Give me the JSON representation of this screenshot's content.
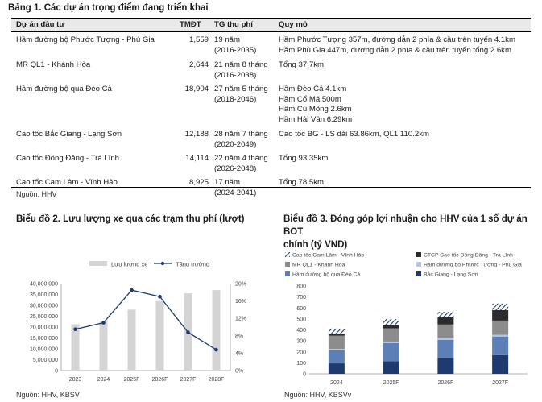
{
  "table": {
    "title": "Bảng 1. Các dự án trọng điểm đang triển khai",
    "headers": [
      "Dự án đầu tư",
      "TMĐT",
      "TG thu phí",
      "Quy mô"
    ],
    "rows": [
      {
        "project": "Hầm đường bộ Phước Tượng - Phú Gia",
        "tmdt": "1,559",
        "period": [
          "19 năm",
          "(2016-2035)"
        ],
        "scale": [
          "Hầm Phước Tượng 357m, đường dẫn 2 phía & cầu trên tuyến 4.1km",
          "Hầm Phú Gia 447m, đường dẫn 2 phía & cầu trên tuyến tổng 2.6km"
        ]
      },
      {
        "project": "MR QL1 - Khánh Hòa",
        "tmdt": "2,644",
        "period": [
          "21 năm 8 tháng",
          "(2016-2038)"
        ],
        "scale": [
          "Tổng 37.7km"
        ]
      },
      {
        "project": "Hầm đường bộ qua Đèo Cả",
        "tmdt": "18,904",
        "period": [
          "27 năm 5 tháng",
          "(2018-2046)"
        ],
        "scale": [
          "Hầm Đèo Cả 4.1km",
          "Hầm Cổ Mã 500m",
          "Hầm Cù Mông 2.6km",
          "Hầm Hải Vân 6.29km"
        ]
      },
      {
        "project": "Cao tốc Bắc Giang - Lạng Sơn",
        "tmdt": "12,188",
        "period": [
          "28 năm 7 tháng",
          "(2020-2049)"
        ],
        "scale": [
          "Cao tốc BG - LS dài 63.86km, QL1 110.2km"
        ]
      },
      {
        "project": "Cao tốc Đồng Đăng - Trà Lĩnh",
        "tmdt": "14,114",
        "period": [
          "22 năm 4 tháng",
          "(2026-2048)"
        ],
        "scale": [
          "Tổng 93.35km"
        ]
      },
      {
        "project": "Cao tốc Cam Lâm - Vĩnh Hảo",
        "tmdt": "8,925",
        "period": [
          "17 năm",
          "(2024-2041)"
        ],
        "scale": [
          "Tổng 78.5km"
        ]
      }
    ],
    "source": "Nguồn: HHV"
  },
  "chart_data": [
    {
      "type": "bar+line",
      "title": "Biểu đồ 2. Lưu lượng xe qua các trạm thu phí (lượt)",
      "categories": [
        "2023",
        "2024",
        "2025F",
        "2026F",
        "2027F",
        "2028F"
      ],
      "series": [
        {
          "name": "Lưu lượng xe",
          "type": "bar",
          "axis": "left",
          "values": [
            21300000,
            22500000,
            28000000,
            32000000,
            35500000,
            37000000
          ]
        },
        {
          "name": "Tăng trưởng",
          "type": "line",
          "axis": "right",
          "values": [
            9.5,
            11.0,
            18.5,
            17.0,
            8.8,
            4.8
          ]
        }
      ],
      "y_left": {
        "min": 0,
        "max": 40000000,
        "ticks": [
          "0",
          "5,000,000",
          "10,000,000",
          "15,000,000",
          "20,000,000",
          "25,000,000",
          "30,000,000",
          "35,000,000",
          "40,000,000"
        ]
      },
      "y_right": {
        "min": 0,
        "max": 20,
        "ticks": [
          "0%",
          "4%",
          "8%",
          "12%",
          "16%",
          "20%"
        ]
      },
      "legend_position": "top",
      "source": "Nguồn: HHV, KBSV"
    },
    {
      "type": "stacked-bar",
      "title_lines": [
        "Biểu đồ 3. Đóng góp lợi nhuận cho HHV của 1 số dự án BOT",
        "chính (tỷ VND)"
      ],
      "categories": [
        "2024",
        "2025F",
        "2026F",
        "2027F"
      ],
      "y_axis": {
        "min": 0,
        "max": 800,
        "ticks": [
          "0",
          "100",
          "200",
          "300",
          "400",
          "500",
          "600",
          "700",
          "800"
        ]
      },
      "series": [
        {
          "name": "Bắc Giang - Lạng Sơn",
          "color": "#1f3a6e",
          "values": [
            95,
            115,
            145,
            170
          ]
        },
        {
          "name": "Hầm đường bộ qua Đèo Cả",
          "color": "#5b7fb6",
          "values": [
            120,
            165,
            165,
            170
          ]
        },
        {
          "name": "Hầm đường bộ Phước Tượng - Phú Gia",
          "color": "#b5c6dd",
          "values": [
            12,
            14,
            14,
            15
          ]
        },
        {
          "name": "MR QL1 - Khánh Hòa",
          "color": "#8c8c8c",
          "values": [
            120,
            120,
            125,
            130
          ]
        },
        {
          "name": "CTCP Cao tốc Đồng Đăng - Trà Lĩnh",
          "color": "#2b2b2b",
          "values": [
            20,
            35,
            65,
            95
          ]
        },
        {
          "name": "Cao tốc Cam Lâm - Vĩnh Hảo",
          "color": "#1f3a6e",
          "pattern": "hatch",
          "values": [
            45,
            50,
            50,
            60
          ]
        }
      ],
      "legend_position": "top",
      "source": "Nguồn: HHV, KBSVv"
    }
  ]
}
